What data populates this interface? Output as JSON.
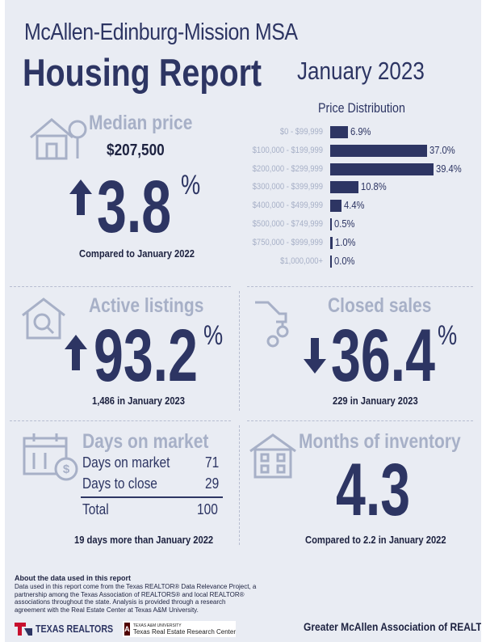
{
  "header": {
    "region": "McAllen-Edinburg-Mission MSA",
    "report_title": "Housing Report",
    "month": "January 2023"
  },
  "median_price": {
    "label": "Median price",
    "value": "$207,500",
    "change": "3.8",
    "percent_sign": "%",
    "direction": "up",
    "comparison": "Compared to January 2022"
  },
  "price_distribution": {
    "title": "Price Distribution",
    "chart_data": {
      "type": "bar",
      "orientation": "horizontal",
      "categories": [
        "$0 - $99,999",
        "$100,000 - $199,999",
        "$200,000 - $299,999",
        "$300,000 - $399,999",
        "$400,000 - $499,999",
        "$500,000 - $749,999",
        "$750,000 - $999,999",
        "$1,000,000+"
      ],
      "values": [
        6.9,
        37.0,
        39.4,
        10.8,
        4.4,
        0.5,
        1.0,
        0.0
      ],
      "value_labels": [
        "6.9%",
        "37.0%",
        "39.4%",
        "10.8%",
        "4.4%",
        "0.5%",
        "1.0%",
        "0.0%"
      ],
      "xlim": [
        0,
        39.4
      ]
    }
  },
  "active_listings": {
    "label": "Active listings",
    "change": "93.2",
    "percent_sign": "%",
    "direction": "up",
    "detail": "1,486 in January 2023"
  },
  "closed_sales": {
    "label": "Closed sales",
    "change": "36.4",
    "percent_sign": "%",
    "direction": "down",
    "detail": "229 in January 2023"
  },
  "days_on_market": {
    "label": "Days on market",
    "rows": [
      {
        "name": "Days on market",
        "value": "71"
      },
      {
        "name": "Days to close",
        "value": "29"
      }
    ],
    "total_label": "Total",
    "total_value": "100",
    "comparison": "19 days more than January 2022"
  },
  "months_inventory": {
    "label": "Months of inventory",
    "value": "4.3",
    "comparison": "Compared to 2.2 in January 2022"
  },
  "footer": {
    "about_title": "About the data used in this report",
    "about_text": "Data used in this report come from the Texas REALTOR® Data Relevance Project, a partnership among the Texas Association of REALTORS® and local REALTOR® associations throughout the state. Analysis is provided through a research agreement with the Real Estate Center at Texas A&M University.",
    "logo_texas_realtors": "TEXAS REALTORS",
    "logo_tamu_small": "TEXAS A&M UNIVERSITY",
    "logo_tamu": "Texas Real Estate Research Center",
    "association": "Greater McAllen Association of REALTORS®"
  },
  "colors": {
    "navy": "#2d3563",
    "muted": "#a7b0c7",
    "background": "#e9ecf3",
    "logo_red": "#c8102e",
    "tamu_maroon": "#500000"
  }
}
